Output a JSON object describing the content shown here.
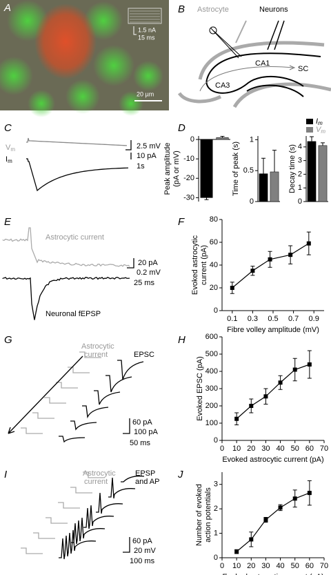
{
  "panel_a": {
    "letter": "A",
    "scale_current": "1.5 nA",
    "scale_time": "15 ms",
    "scale_bar": "20 µm"
  },
  "panel_b": {
    "letter": "B",
    "astrocyte": "Astrocyte",
    "neurons": "Neurons",
    "ca1": "CA1",
    "sc": "SC",
    "ca3": "CA3"
  },
  "panel_c": {
    "letter": "C",
    "vm": {
      "main": "V",
      "sub": "m"
    },
    "im": {
      "main": "I",
      "sub": "m"
    },
    "scale_voltage": "2.5 mV",
    "scale_current": "10 pA",
    "scale_time": "1s"
  },
  "panel_d": {
    "letter": "D",
    "legend": [
      {
        "main": "I",
        "sub": "m",
        "color": "#000000"
      },
      {
        "main": "V",
        "sub": "m",
        "color": "#808080"
      }
    ]
  },
  "panel_e": {
    "letter": "E",
    "astro": "Astrocytic current",
    "scale_current": "20 pA",
    "scale_voltage": "0.2 mV",
    "scale_time": "25 ms",
    "neuro": "Neuronal fEPSP"
  },
  "panel_f": {
    "letter": "F"
  },
  "panel_g": {
    "letter": "G",
    "astro": [
      "Astrocytic",
      "current"
    ],
    "epsc": "EPSC",
    "scale_astro": "60 pA",
    "scale_epsc": "100 pA",
    "scale_time": "50 ms"
  },
  "panel_h": {
    "letter": "H"
  },
  "panel_i": {
    "letter": "I",
    "astro": [
      "Astrocytic",
      "current"
    ],
    "epsp": [
      "EPSP",
      "and AP"
    ],
    "scale_astro": "60 pA",
    "scale_voltage": "20 mV",
    "scale_time": "100 ms"
  },
  "panel_j": {
    "letter": "J"
  },
  "chart_data": [
    {
      "type": "bar",
      "ylabel": [
        "Peak amplitude",
        "(pA or mV)"
      ],
      "categories": [
        null,
        null
      ],
      "values": [
        -30,
        1
      ],
      "errors": [
        1,
        0.6
      ],
      "colors": [
        "#000000",
        "#808080"
      ],
      "ylim": [
        -32,
        1.8
      ],
      "yticks": [
        0,
        -10,
        -20,
        -30
      ]
    },
    {
      "type": "bar",
      "ylabel": [
        "Time of peak (s)"
      ],
      "categories": [
        null,
        null
      ],
      "values": [
        0.45,
        0.48
      ],
      "errors": [
        0.25,
        0.35
      ],
      "colors": [
        "#000000",
        "#808080"
      ],
      "ylim": [
        0,
        1.06
      ],
      "yticks": [
        0,
        0.5,
        1
      ]
    },
    {
      "type": "bar",
      "ylabel": [
        "Decay time (s)"
      ],
      "categories": [
        null,
        null
      ],
      "values": [
        4.4,
        4.1
      ],
      "errors": [
        0.35,
        0.2
      ],
      "colors": [
        "#000000",
        "#808080"
      ],
      "ylim": [
        0,
        4.8
      ],
      "yticks": [
        0,
        1,
        2,
        3,
        4
      ]
    },
    {
      "type": "line",
      "ylabel": [
        "Evoked astrocytic",
        "current (pA)"
      ],
      "xlabel": "Fibre volley amplitude (mV)",
      "x": [
        0.1,
        0.3,
        0.47,
        0.67,
        0.85
      ],
      "values": [
        20,
        35,
        45,
        49,
        59
      ],
      "errors": [
        5,
        4,
        7,
        8,
        10
      ],
      "color": "#000000",
      "xlim": [
        0,
        1
      ],
      "xticks": [
        0.1,
        0.3,
        0.5,
        0.7,
        0.9
      ],
      "ylim": [
        0,
        80
      ],
      "yticks": [
        0,
        20,
        40,
        60,
        80
      ]
    },
    {
      "type": "line",
      "ylabel": [
        "Evoked EPSC (pA)"
      ],
      "xlabel": "Evoked astrocytic current (pA)",
      "x": [
        10,
        20,
        30,
        40,
        50,
        60
      ],
      "values": [
        125,
        200,
        255,
        335,
        410,
        440
      ],
      "errors": [
        35,
        40,
        45,
        40,
        65,
        80
      ],
      "color": "#000000",
      "xlim": [
        0,
        70
      ],
      "xticks": [
        0,
        10,
        20,
        30,
        40,
        50,
        60,
        70
      ],
      "ylim": [
        0,
        600
      ],
      "yticks": [
        0,
        100,
        200,
        300,
        400,
        500,
        600
      ]
    },
    {
      "type": "line",
      "ylabel": [
        "Number of evoked",
        "action potentials"
      ],
      "xlabel": "Evoked astrocytic current (pA)",
      "x": [
        10,
        20,
        30,
        40,
        50,
        60
      ],
      "values": [
        0.25,
        0.75,
        1.55,
        2.05,
        2.42,
        2.65
      ],
      "errors": [
        0.08,
        0.3,
        0.1,
        0.12,
        0.35,
        0.5
      ],
      "color": "#000000",
      "xlim": [
        0,
        70
      ],
      "xticks": [
        0,
        10,
        20,
        30,
        40,
        50,
        60,
        70
      ],
      "ylim": [
        0,
        3.5
      ],
      "yticks": [
        0,
        1,
        2,
        3
      ]
    }
  ]
}
